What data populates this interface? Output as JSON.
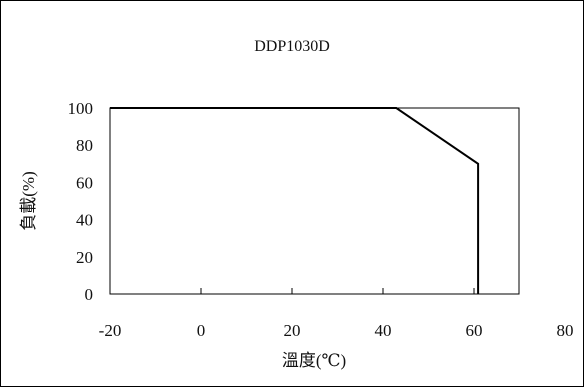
{
  "chart_data": {
    "type": "line",
    "title": "DDP1030D",
    "xlabel": "溫度(℃)",
    "ylabel": "負載(%)",
    "xlim": [
      -20,
      80
    ],
    "ylim": [
      0,
      100
    ],
    "x_ticks": [
      "-20",
      "0",
      "20",
      "40",
      "60",
      "80"
    ],
    "y_ticks": [
      "0",
      "20",
      "40",
      "60",
      "80",
      "100"
    ],
    "series": [
      {
        "x": [
          -20,
          50,
          70,
          70
        ],
        "y": [
          100,
          100,
          70,
          0
        ]
      }
    ],
    "grid": false,
    "legend": "none",
    "line_color": "#000000"
  }
}
